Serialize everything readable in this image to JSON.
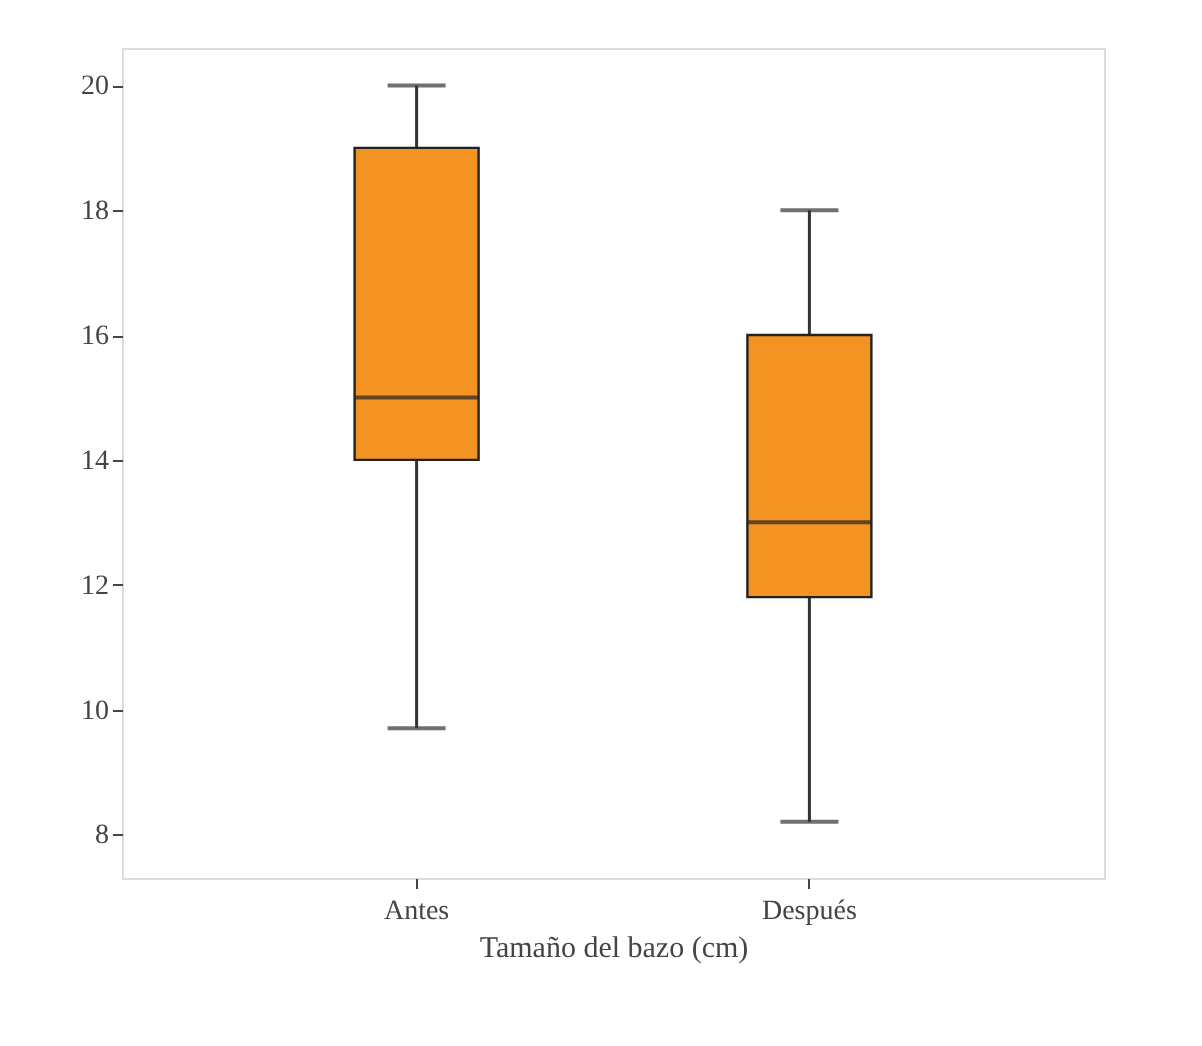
{
  "chart_data": {
    "type": "box",
    "xlabel": "Tamaño del bazo (cm)",
    "categories": [
      "Antes",
      "Después"
    ],
    "color": "#f39321",
    "boxes": [
      {
        "low": 9.7,
        "q1": 14,
        "median": 15,
        "q3": 19,
        "high": 20
      },
      {
        "low": 8.2,
        "q1": 11.8,
        "median": 13,
        "q3": 16,
        "high": 18
      }
    ],
    "ylim": [
      7.3,
      20.6
    ],
    "yticks": [
      8,
      10,
      12,
      14,
      16,
      18,
      20
    ],
    "grid": false
  }
}
